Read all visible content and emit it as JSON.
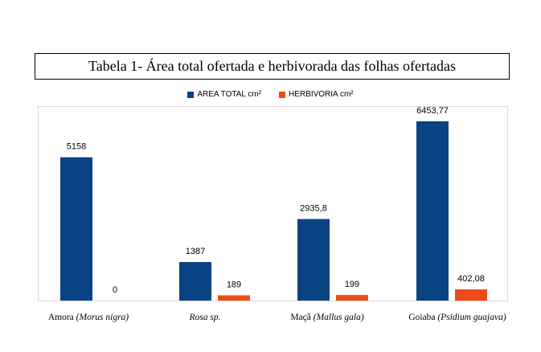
{
  "page_title": "Tabela 1- Área total ofertada e herbivorada das folhas ofertadas",
  "chart_data": {
    "type": "bar",
    "title": "",
    "categories": [
      {
        "name": "Amora",
        "scientific": "(Morus nigra)"
      },
      {
        "name": "",
        "scientific": "Rosa sp."
      },
      {
        "name": "Maçã",
        "scientific": "(Mallus gala)"
      },
      {
        "name": "Goiaba",
        "scientific": "(Psidium guajava)"
      }
    ],
    "series": [
      {
        "name": "AREA TOTAL cm²",
        "color": "#0a4383",
        "values": [
          5158,
          1387,
          2935.8,
          6453.77
        ],
        "labels": [
          "5158",
          "1387",
          "2935,8",
          "6453,77"
        ]
      },
      {
        "name": "HERBIVORIA cm²",
        "color": "#ef4b16",
        "values": [
          0,
          189,
          199,
          402.08
        ],
        "labels": [
          "0",
          "189",
          "199",
          "402,08"
        ]
      }
    ],
    "ylim": [
      0,
      7000
    ],
    "xlabel": "",
    "ylabel": "",
    "grid": false,
    "legend_position": "top"
  }
}
